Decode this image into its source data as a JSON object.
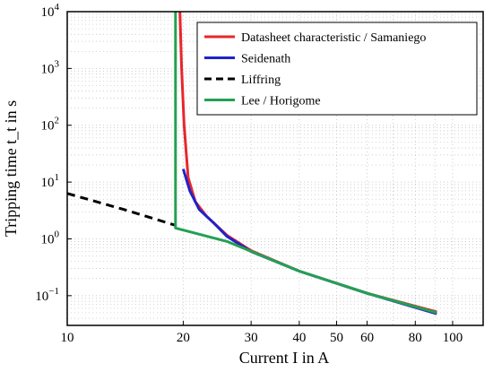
{
  "chart_data": {
    "type": "line",
    "title": "",
    "xlabel": "Current I in A",
    "ylabel": "Tripping time t_t in s",
    "xscale": "log",
    "yscale": "log",
    "xlim": [
      10,
      120
    ],
    "ylim": [
      0.03,
      10000
    ],
    "grid": true,
    "legend_position": "top-right",
    "x_ticks": [
      {
        "value": 10,
        "label": "10"
      },
      {
        "value": 20,
        "label": "20"
      },
      {
        "value": 30,
        "label": "30"
      },
      {
        "value": 40,
        "label": "40"
      },
      {
        "value": 50,
        "label": "50"
      },
      {
        "value": 60,
        "label": "60"
      },
      {
        "value": 80,
        "label": "80"
      },
      {
        "value": 100,
        "label": "100"
      }
    ],
    "y_ticks": [
      {
        "value": 0.1,
        "base": "10",
        "exp": "−1"
      },
      {
        "value": 1,
        "base": "10",
        "exp": "0"
      },
      {
        "value": 10,
        "base": "10",
        "exp": "1"
      },
      {
        "value": 100,
        "base": "10",
        "exp": "2"
      },
      {
        "value": 1000,
        "base": "10",
        "exp": "3"
      },
      {
        "value": 10000,
        "base": "10",
        "exp": "4"
      }
    ],
    "series": [
      {
        "name": "Datasheet characteristic / Samaniego",
        "color": "#e8262b",
        "dash": "solid",
        "points": [
          [
            19.6,
            10000
          ],
          [
            19.8,
            1000
          ],
          [
            20.1,
            100
          ],
          [
            20.6,
            12
          ],
          [
            21.5,
            4.5
          ],
          [
            23,
            2.5
          ],
          [
            26,
            1.15
          ],
          [
            30,
            0.62
          ],
          [
            40,
            0.27
          ],
          [
            60,
            0.11
          ],
          [
            91,
            0.052
          ]
        ]
      },
      {
        "name": "Seidenath",
        "color": "#1f23c9",
        "dash": "solid",
        "points": [
          [
            20,
            17
          ],
          [
            20.8,
            7
          ],
          [
            22,
            3.3
          ],
          [
            24,
            1.9
          ],
          [
            26,
            1.1
          ],
          [
            30,
            0.6
          ],
          [
            40,
            0.27
          ],
          [
            60,
            0.11
          ],
          [
            91,
            0.048
          ]
        ]
      },
      {
        "name": "Liffring",
        "color": "#000000",
        "dash": "dashed",
        "points": [
          [
            10,
            6.3
          ],
          [
            14,
            3.3
          ],
          [
            19,
            1.75
          ]
        ]
      },
      {
        "name": "Lee / Horigome",
        "color": "#23a152",
        "dash": "solid",
        "points": [
          [
            19.1,
            10000
          ],
          [
            19.1,
            1.55
          ],
          [
            26,
            0.9
          ],
          [
            40,
            0.27
          ],
          [
            60,
            0.11
          ],
          [
            91,
            0.05
          ]
        ]
      }
    ]
  }
}
